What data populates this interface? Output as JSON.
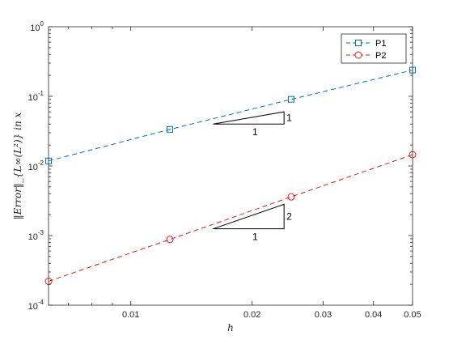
{
  "chart_data": {
    "type": "line",
    "title": "",
    "xlabel": "h",
    "ylabel": "‖Error‖_{L∞(L²)} in x",
    "xscale": "log",
    "yscale": "log",
    "xlim": [
      0.00625,
      0.05
    ],
    "ylim": [
      0.0001,
      1
    ],
    "grid": false,
    "legend_position": "top-right",
    "x_ticks": [
      0.01,
      0.02,
      0.03,
      0.04,
      0.05
    ],
    "x_tick_labels": [
      "0.01",
      "0.02",
      "0.03",
      "0.04",
      "0.05"
    ],
    "y_ticks": [
      0.0001,
      0.001,
      0.01,
      0.1,
      1
    ],
    "y_tick_labels": [
      {
        "base": "10",
        "exp": "-4"
      },
      {
        "base": "10",
        "exp": "-3"
      },
      {
        "base": "10",
        "exp": "-2"
      },
      {
        "base": "10",
        "exp": "-1"
      },
      {
        "base": "10",
        "exp": "0"
      }
    ],
    "series": [
      {
        "name": "P1",
        "color": "#0072BD",
        "marker": "square",
        "line": "dashed",
        "x": [
          0.00625,
          0.0125,
          0.025,
          0.05
        ],
        "y": [
          0.0118,
          0.0335,
          0.0905,
          0.238
        ]
      },
      {
        "name": "P2",
        "color": "#E31A1C",
        "marker": "circle",
        "line": "dashed",
        "x": [
          0.00625,
          0.0125,
          0.025,
          0.05
        ],
        "y": [
          0.00022,
          0.00088,
          0.0036,
          0.0145
        ]
      }
    ],
    "annotations": [
      {
        "type": "slope-triangle",
        "x": [
          0.016,
          0.024
        ],
        "y_base": 0.04,
        "slope": 1,
        "run_label": "1",
        "rise_label": "1"
      },
      {
        "type": "slope-triangle",
        "x": [
          0.016,
          0.024
        ],
        "y_base": 0.00125,
        "slope": 2,
        "run_label": "1",
        "rise_label": "2"
      }
    ]
  }
}
